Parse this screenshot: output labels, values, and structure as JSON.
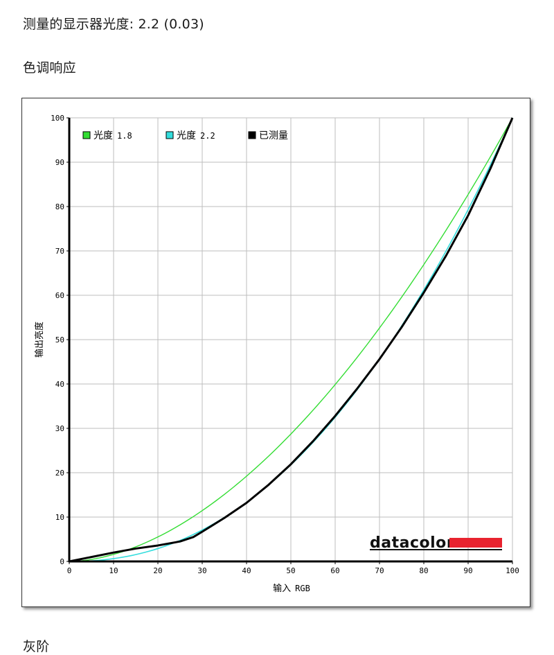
{
  "header": {
    "measured_label": "测量的显示器光度:",
    "measured_value": "2.2 (0.03)",
    "section_title": "色调响应",
    "next_section_partial": "灰阶"
  },
  "chart_data": {
    "type": "line",
    "title": "",
    "xlabel_cn": "输入",
    "xlabel_en": "RGB",
    "ylabel": "输出亮度",
    "xlim": [
      0,
      100
    ],
    "ylim": [
      0,
      100
    ],
    "x_ticks": [
      0,
      10,
      20,
      30,
      40,
      50,
      60,
      70,
      80,
      90,
      100
    ],
    "y_ticks": [
      0,
      10,
      20,
      30,
      40,
      50,
      60,
      70,
      80,
      90,
      100
    ],
    "grid": true,
    "legend_position": "top-left",
    "series": [
      {
        "name_cn": "光度",
        "name_num": "1.8",
        "color": "#33dd33",
        "gamma": 1.8,
        "x": [
          0,
          10,
          20,
          30,
          40,
          50,
          60,
          70,
          80,
          90,
          100
        ],
        "y": [
          0,
          1.6,
          5.5,
          11.5,
          19.2,
          28.7,
          39.9,
          52.6,
          66.9,
          82.7,
          100
        ]
      },
      {
        "name_cn": "光度",
        "name_num": "2.2",
        "color": "#33dddd",
        "gamma": 2.2,
        "x": [
          0,
          10,
          20,
          30,
          40,
          50,
          60,
          70,
          80,
          90,
          100
        ],
        "y": [
          0,
          0.6,
          2.9,
          7.1,
          13.3,
          21.8,
          32.5,
          45.6,
          61.2,
          79.3,
          100
        ]
      },
      {
        "name_cn": "已测量",
        "color": "#000000",
        "x": [
          0,
          5,
          10,
          15,
          20,
          25,
          28,
          30,
          35,
          40,
          45,
          50,
          55,
          60,
          65,
          70,
          75,
          80,
          85,
          90,
          95,
          100
        ],
        "y": [
          0,
          1.0,
          2.0,
          2.9,
          3.6,
          4.5,
          5.5,
          6.7,
          9.8,
          13.2,
          17.3,
          21.9,
          27.1,
          32.8,
          39.0,
          45.6,
          52.8,
          60.6,
          68.9,
          78.0,
          88.5,
          100
        ]
      }
    ]
  },
  "logo": {
    "text": "datacolor",
    "bar_color": "#e8232f"
  }
}
